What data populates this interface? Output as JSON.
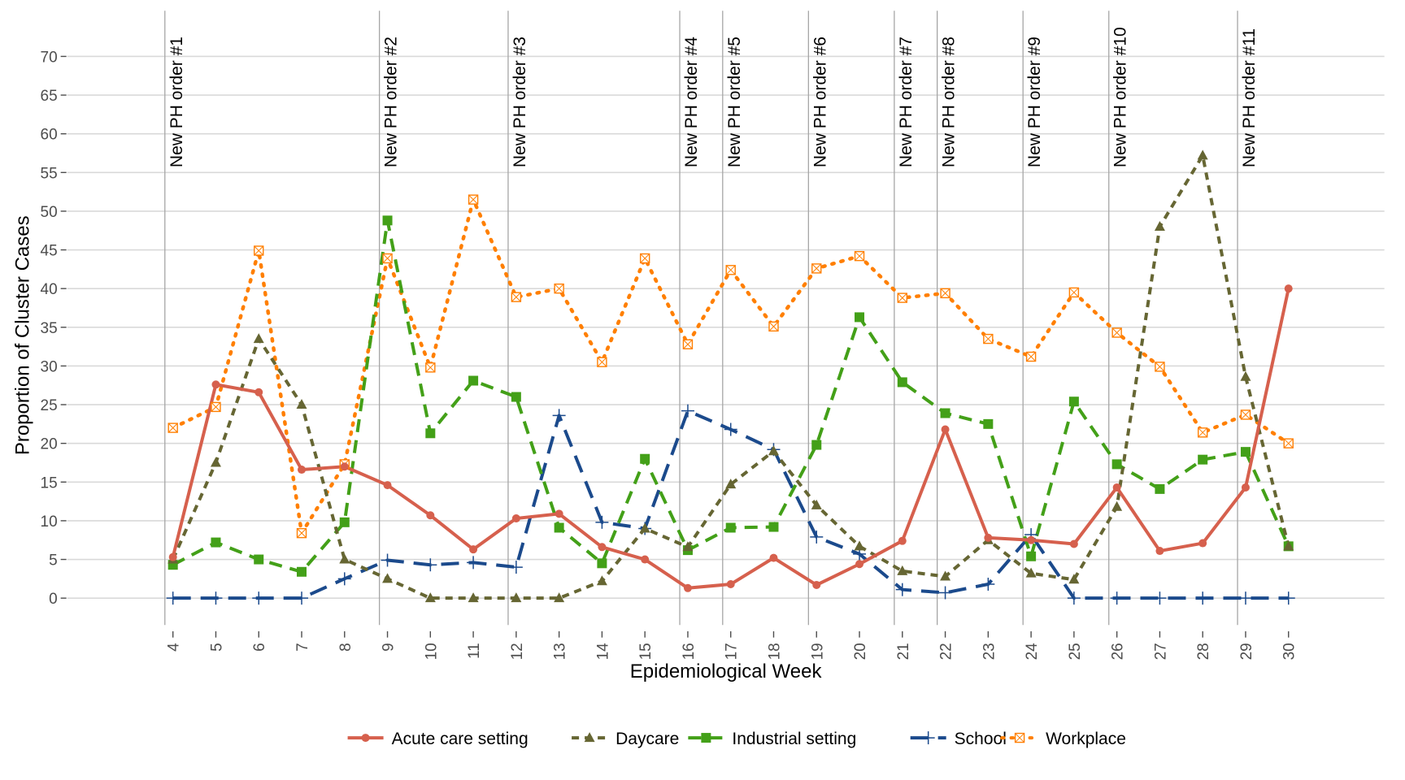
{
  "chart_data": {
    "type": "line",
    "title": "",
    "xlabel": "Epidemiological Week",
    "ylabel": "Proportion of Cluster Cases",
    "x": [
      4,
      5,
      6,
      7,
      8,
      9,
      10,
      11,
      12,
      13,
      14,
      15,
      16,
      17,
      18,
      19,
      20,
      21,
      22,
      23,
      24,
      25,
      26,
      27,
      28,
      29,
      30
    ],
    "xlim": [
      3,
      31
    ],
    "ylim": [
      -3,
      73
    ],
    "yticks": [
      0,
      5,
      10,
      15,
      20,
      25,
      30,
      35,
      40,
      45,
      50,
      55,
      60,
      65,
      70
    ],
    "grid": "horizontal",
    "legend_position": "bottom",
    "series": [
      {
        "name": "Acute care setting",
        "color": "#D6604D",
        "dash": "solid",
        "marker": "circle",
        "values": [
          5.3,
          27.6,
          26.6,
          16.6,
          17.0,
          14.6,
          10.7,
          6.3,
          10.3,
          10.9,
          6.6,
          5.0,
          1.3,
          1.8,
          5.2,
          1.7,
          4.4,
          7.4,
          21.8,
          7.8,
          7.5,
          7.0,
          14.3,
          6.1,
          7.1,
          14.3,
          40.0
        ]
      },
      {
        "name": "Daycare",
        "color": "#666633",
        "dash": "dashed-short",
        "marker": "triangle",
        "values": [
          5.0,
          17.5,
          33.5,
          25.0,
          5.0,
          2.5,
          0.0,
          0.0,
          0.0,
          0.0,
          2.2,
          9.0,
          6.6,
          14.7,
          19.0,
          12.0,
          6.7,
          3.5,
          2.8,
          7.5,
          3.2,
          2.4,
          11.8,
          48.0,
          57.2,
          28.6,
          6.7
        ]
      },
      {
        "name": "Industrial setting",
        "color": "#43A018",
        "dash": "dashed",
        "marker": "square",
        "values": [
          4.3,
          7.2,
          5.0,
          3.4,
          9.8,
          48.8,
          21.3,
          28.1,
          26.0,
          9.1,
          4.5,
          18.0,
          6.2,
          9.1,
          9.2,
          19.8,
          36.3,
          27.9,
          23.9,
          22.5,
          5.4,
          25.4,
          17.3,
          14.1,
          17.9,
          18.9,
          6.7
        ]
      },
      {
        "name": "School",
        "color": "#1B4A8C",
        "dash": "long-dashed",
        "marker": "plus",
        "values": [
          0.0,
          0.0,
          0.0,
          0.0,
          2.5,
          4.9,
          4.3,
          4.6,
          4.0,
          23.6,
          9.8,
          9.0,
          24.2,
          21.8,
          19.2,
          7.9,
          5.7,
          1.1,
          0.7,
          1.8,
          8.2,
          0.0,
          0.0,
          0.0,
          0.0,
          0.0,
          0.0
        ]
      },
      {
        "name": "Workplace",
        "color": "#FF7F00",
        "dash": "dotted",
        "marker": "boxed-x",
        "values": [
          22.0,
          24.7,
          44.9,
          8.4,
          17.3,
          43.9,
          29.8,
          51.5,
          38.9,
          40.0,
          30.5,
          43.9,
          32.8,
          42.4,
          35.1,
          42.6,
          44.2,
          38.8,
          39.4,
          33.5,
          31.2,
          39.5,
          34.3,
          29.9,
          21.4,
          23.7,
          20.0
        ]
      }
    ],
    "annotations": [
      {
        "x": 4,
        "label": "New PH order #1"
      },
      {
        "x": 9,
        "label": "New PH order #2"
      },
      {
        "x": 12,
        "label": "New PH order #3"
      },
      {
        "x": 16,
        "label": "New PH order #4"
      },
      {
        "x": 17,
        "label": "New PH order #5"
      },
      {
        "x": 19,
        "label": "New PH order #6"
      },
      {
        "x": 21,
        "label": "New PH order #7"
      },
      {
        "x": 22,
        "label": "New PH order #8"
      },
      {
        "x": 24,
        "label": "New PH order #9"
      },
      {
        "x": 26,
        "label": "New PH order #10"
      },
      {
        "x": 29,
        "label": "New PH order #11"
      }
    ]
  },
  "colors": {
    "gridline": "#D9D9D9",
    "annotation_line": "#A6A6A6",
    "tick_text": "#4D4D4D"
  }
}
